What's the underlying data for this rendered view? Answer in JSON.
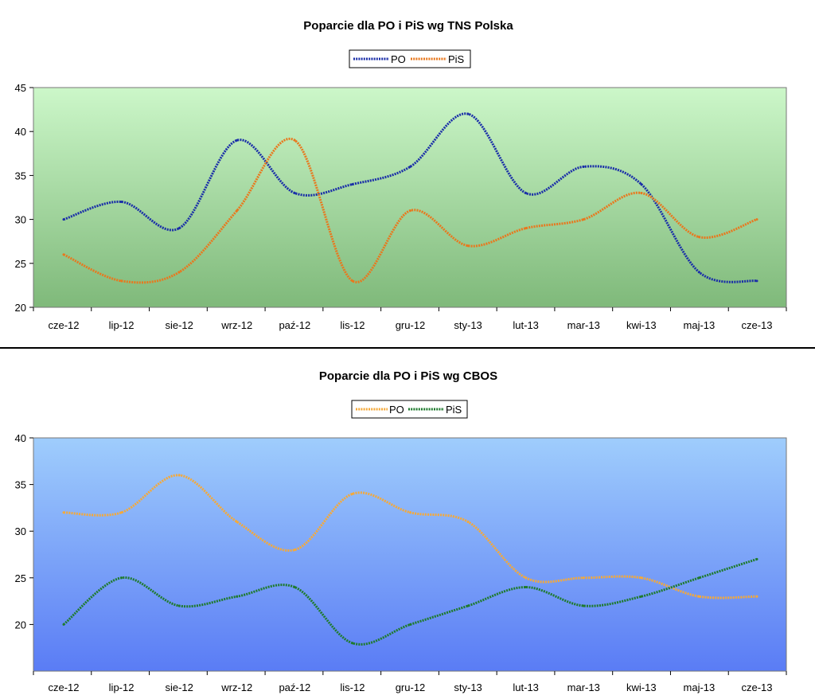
{
  "chart_data": [
    {
      "type": "line",
      "title": "Poparcie dla PO i PiS wg TNS Polska",
      "categories": [
        "cze-12",
        "lip-12",
        "sie-12",
        "wrz-12",
        "paź-12",
        "lis-12",
        "gru-12",
        "sty-13",
        "lut-13",
        "mar-13",
        "kwi-13",
        "maj-13",
        "cze-13"
      ],
      "ylim": [
        20,
        45
      ],
      "yticks": [
        20,
        25,
        30,
        35,
        40,
        45
      ],
      "legend_position": "top",
      "series": [
        {
          "name": "PO",
          "color": "#1a2ea8",
          "values": [
            30,
            32,
            29,
            39,
            33,
            34,
            36,
            42,
            33,
            36,
            34,
            24,
            23
          ]
        },
        {
          "name": "PiS",
          "color": "#e8781e",
          "values": [
            26,
            23,
            24,
            31,
            39,
            23,
            31,
            27,
            29,
            30,
            33,
            28,
            30
          ]
        }
      ],
      "background": {
        "top": "#ccf7c9",
        "bottom": "#7fb97a"
      }
    },
    {
      "type": "line",
      "title": "Poparcie dla PO i PiS wg CBOS",
      "categories": [
        "cze-12",
        "lip-12",
        "sie-12",
        "wrz-12",
        "paź-12",
        "lis-12",
        "gru-12",
        "sty-13",
        "lut-13",
        "mar-13",
        "kwi-13",
        "maj-13",
        "cze-13"
      ],
      "ylim": [
        15,
        40
      ],
      "yticks": [
        20,
        25,
        30,
        35,
        40
      ],
      "legend_position": "top",
      "series": [
        {
          "name": "PO",
          "color": "#f4a93a",
          "values": [
            32,
            32,
            36,
            31,
            28,
            34,
            32,
            31,
            25,
            25,
            25,
            23,
            23
          ]
        },
        {
          "name": "PiS",
          "color": "#1f7a2e",
          "values": [
            20,
            25,
            22,
            23,
            24,
            18,
            20,
            22,
            24,
            22,
            23,
            25,
            27
          ]
        }
      ],
      "background": {
        "top": "#9fcdfc",
        "bottom": "#5a7cf5"
      }
    }
  ]
}
